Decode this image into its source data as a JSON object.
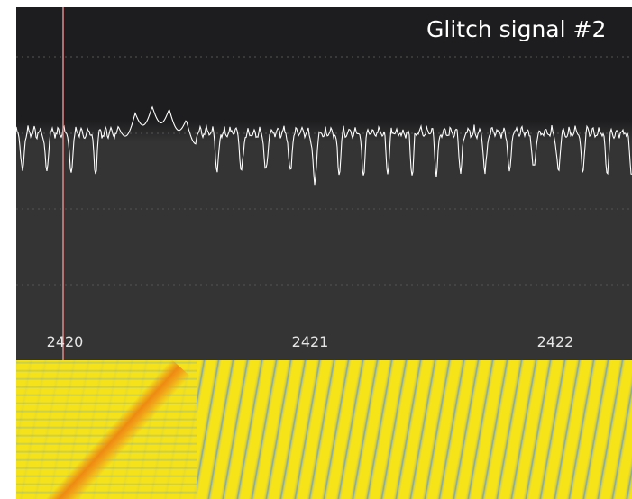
{
  "title": "Glitch signal #2",
  "time_axis": {
    "labels": [
      "2420",
      "2421",
      "2422"
    ]
  }
}
